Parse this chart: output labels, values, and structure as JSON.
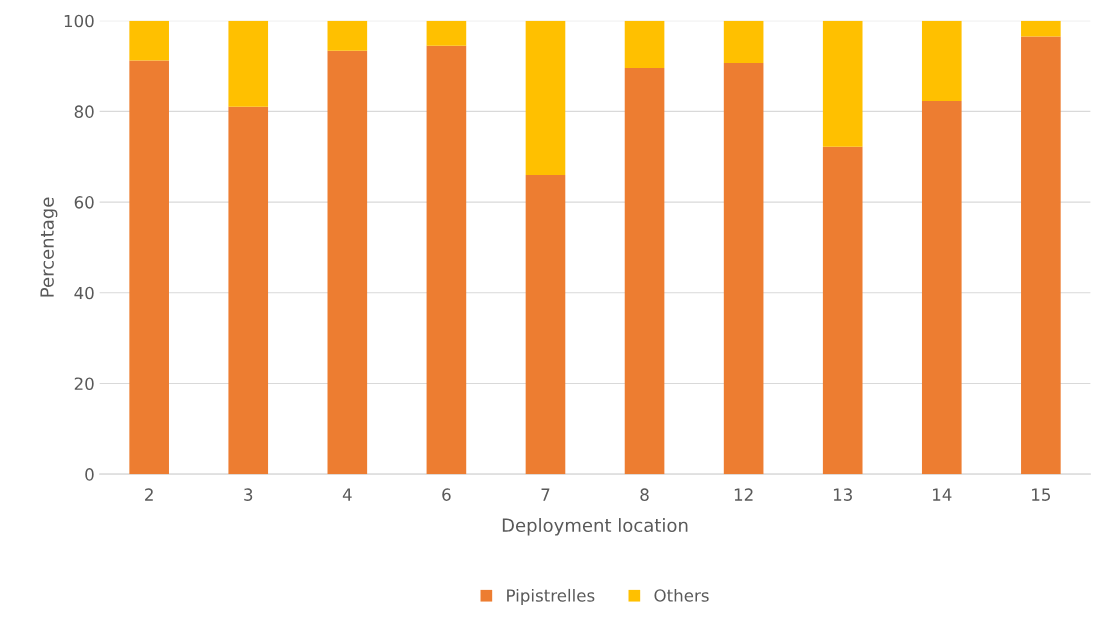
{
  "chart_data": {
    "type": "bar",
    "stacked": true,
    "xlabel": "Deployment location",
    "ylabel": "Percentage",
    "categories": [
      "2",
      "3",
      "4",
      "6",
      "7",
      "8",
      "12",
      "13",
      "14",
      "15"
    ],
    "series": [
      {
        "name": "Pipistrelles",
        "color": "#ed7d31",
        "values": [
          91.2,
          81.0,
          93.4,
          94.5,
          66.0,
          89.6,
          90.7,
          72.2,
          82.3,
          96.5
        ]
      },
      {
        "name": "Others",
        "color": "#ffc000",
        "values": [
          8.8,
          19.0,
          6.6,
          5.5,
          34.0,
          10.4,
          9.3,
          27.8,
          17.7,
          3.5
        ]
      }
    ],
    "ylim": [
      0,
      100
    ],
    "yticks": [
      0,
      20,
      40,
      60,
      80,
      100
    ],
    "grid": "y",
    "legend": "bottom"
  }
}
